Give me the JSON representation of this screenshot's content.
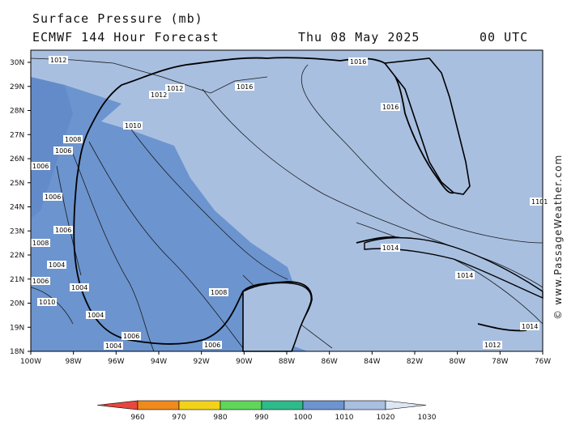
{
  "header": {
    "line1": "Surface Pressure (mb)",
    "line2": "ECMWF 144 Hour Forecast",
    "date": "Thu 08 May 2025",
    "time": "00 UTC"
  },
  "map": {
    "lat_labels": [
      "30N",
      "29N",
      "28N",
      "27N",
      "26N",
      "25N",
      "24N",
      "23N",
      "22N",
      "21N",
      "20N",
      "19N",
      "18N"
    ],
    "lon_labels": [
      "100W",
      "98W",
      "96W",
      "94W",
      "92W",
      "90W",
      "88W",
      "86W",
      "84W",
      "82W",
      "80W",
      "78W",
      "76W"
    ],
    "colors": {
      "water_1010_1020": "#a8bfe0",
      "water_1000_1010": "#6c94cf",
      "land": "#a8bfe0",
      "coast": "#000000",
      "isobar": "#1a1a1a"
    },
    "isobar_labels": [
      "1012",
      "1012",
      "1012",
      "1016",
      "1016",
      "1016",
      "1010",
      "1008",
      "1006",
      "1006",
      "1006",
      "1006",
      "1008",
      "1004",
      "1006",
      "1004",
      "1008",
      "1004",
      "1014",
      "1014",
      "1012",
      "1014",
      "1010",
      "1006",
      "1004",
      "1006",
      "1101"
    ]
  },
  "legend": {
    "values": [
      "960",
      "970",
      "980",
      "990",
      "1000",
      "1010",
      "1020",
      "1030"
    ],
    "colors": [
      "#e8473e",
      "#ef8a1c",
      "#f2d21a",
      "#5fd65a",
      "#2dbb8c",
      "#6c94cf",
      "#a8bfe0",
      "#dde6f4"
    ]
  },
  "watermark": "© www.PassageWeather.com"
}
